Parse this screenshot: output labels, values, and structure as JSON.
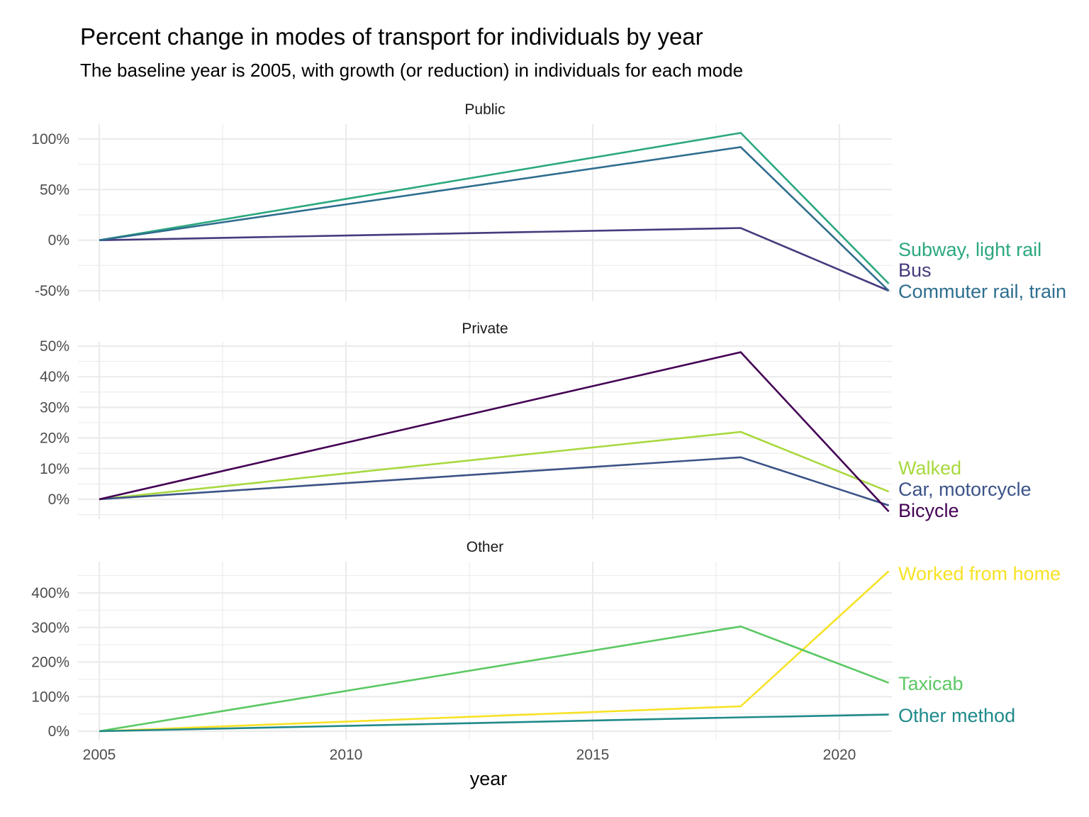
{
  "chart_data": {
    "type": "line",
    "title": "Percent change in modes of transport for individuals by year",
    "subtitle": "The baseline year is 2005, with growth (or reduction) in individuals for each mode",
    "xlabel": "year",
    "ylabel": "",
    "x_ticks": [
      2005,
      2010,
      2015,
      2020
    ],
    "x": [
      2005,
      2018,
      2021
    ],
    "xlim": [
      2005,
      2021
    ],
    "grid": true,
    "legend": "direct labels at line ends (right)",
    "panels": [
      {
        "strip": "Public",
        "ylim": [
          -60,
          110
        ],
        "y_ticks": [
          -50,
          0,
          50,
          100
        ],
        "y_tick_labels": [
          "-50%",
          "0%",
          "50%",
          "100%"
        ],
        "series": [
          {
            "name": "Subway, light rail",
            "color": "#2BA87E",
            "values": [
              0,
              106,
              -43
            ]
          },
          {
            "name": "Bus",
            "color": "#463A7D",
            "values": [
              0,
              12,
              -50
            ]
          },
          {
            "name": "Commuter rail, train",
            "color": "#2E6E8E",
            "values": [
              0,
              92,
              -50
            ]
          }
        ]
      },
      {
        "strip": "Private",
        "ylim": [
          -5,
          50
        ],
        "y_ticks": [
          0,
          10,
          20,
          30,
          40,
          50
        ],
        "y_tick_labels": [
          "0%",
          "10%",
          "20%",
          "30%",
          "40%",
          "50%"
        ],
        "series": [
          {
            "name": "Walked",
            "color": "#A8D93F",
            "values": [
              0,
              22,
              2.5
            ]
          },
          {
            "name": "Car, motorcycle",
            "color": "#3B5387",
            "values": [
              0,
              13.7,
              -2
            ]
          },
          {
            "name": "Bicycle",
            "color": "#440154",
            "values": [
              0,
              48,
              -4
            ]
          }
        ]
      },
      {
        "strip": "Other",
        "ylim": [
          0,
          480
        ],
        "y_ticks": [
          0,
          100,
          200,
          300,
          400
        ],
        "y_tick_labels": [
          "0%",
          "100%",
          "200%",
          "300%",
          "400%"
        ],
        "series": [
          {
            "name": "Worked from home",
            "color": "#F7E225",
            "values": [
              0,
              72,
              463
            ]
          },
          {
            "name": "Taxicab",
            "color": "#5BC863",
            "values": [
              0,
              303,
              140
            ]
          },
          {
            "name": "Other method",
            "color": "#208A8A",
            "values": [
              0,
              40,
              48
            ]
          }
        ]
      }
    ]
  }
}
